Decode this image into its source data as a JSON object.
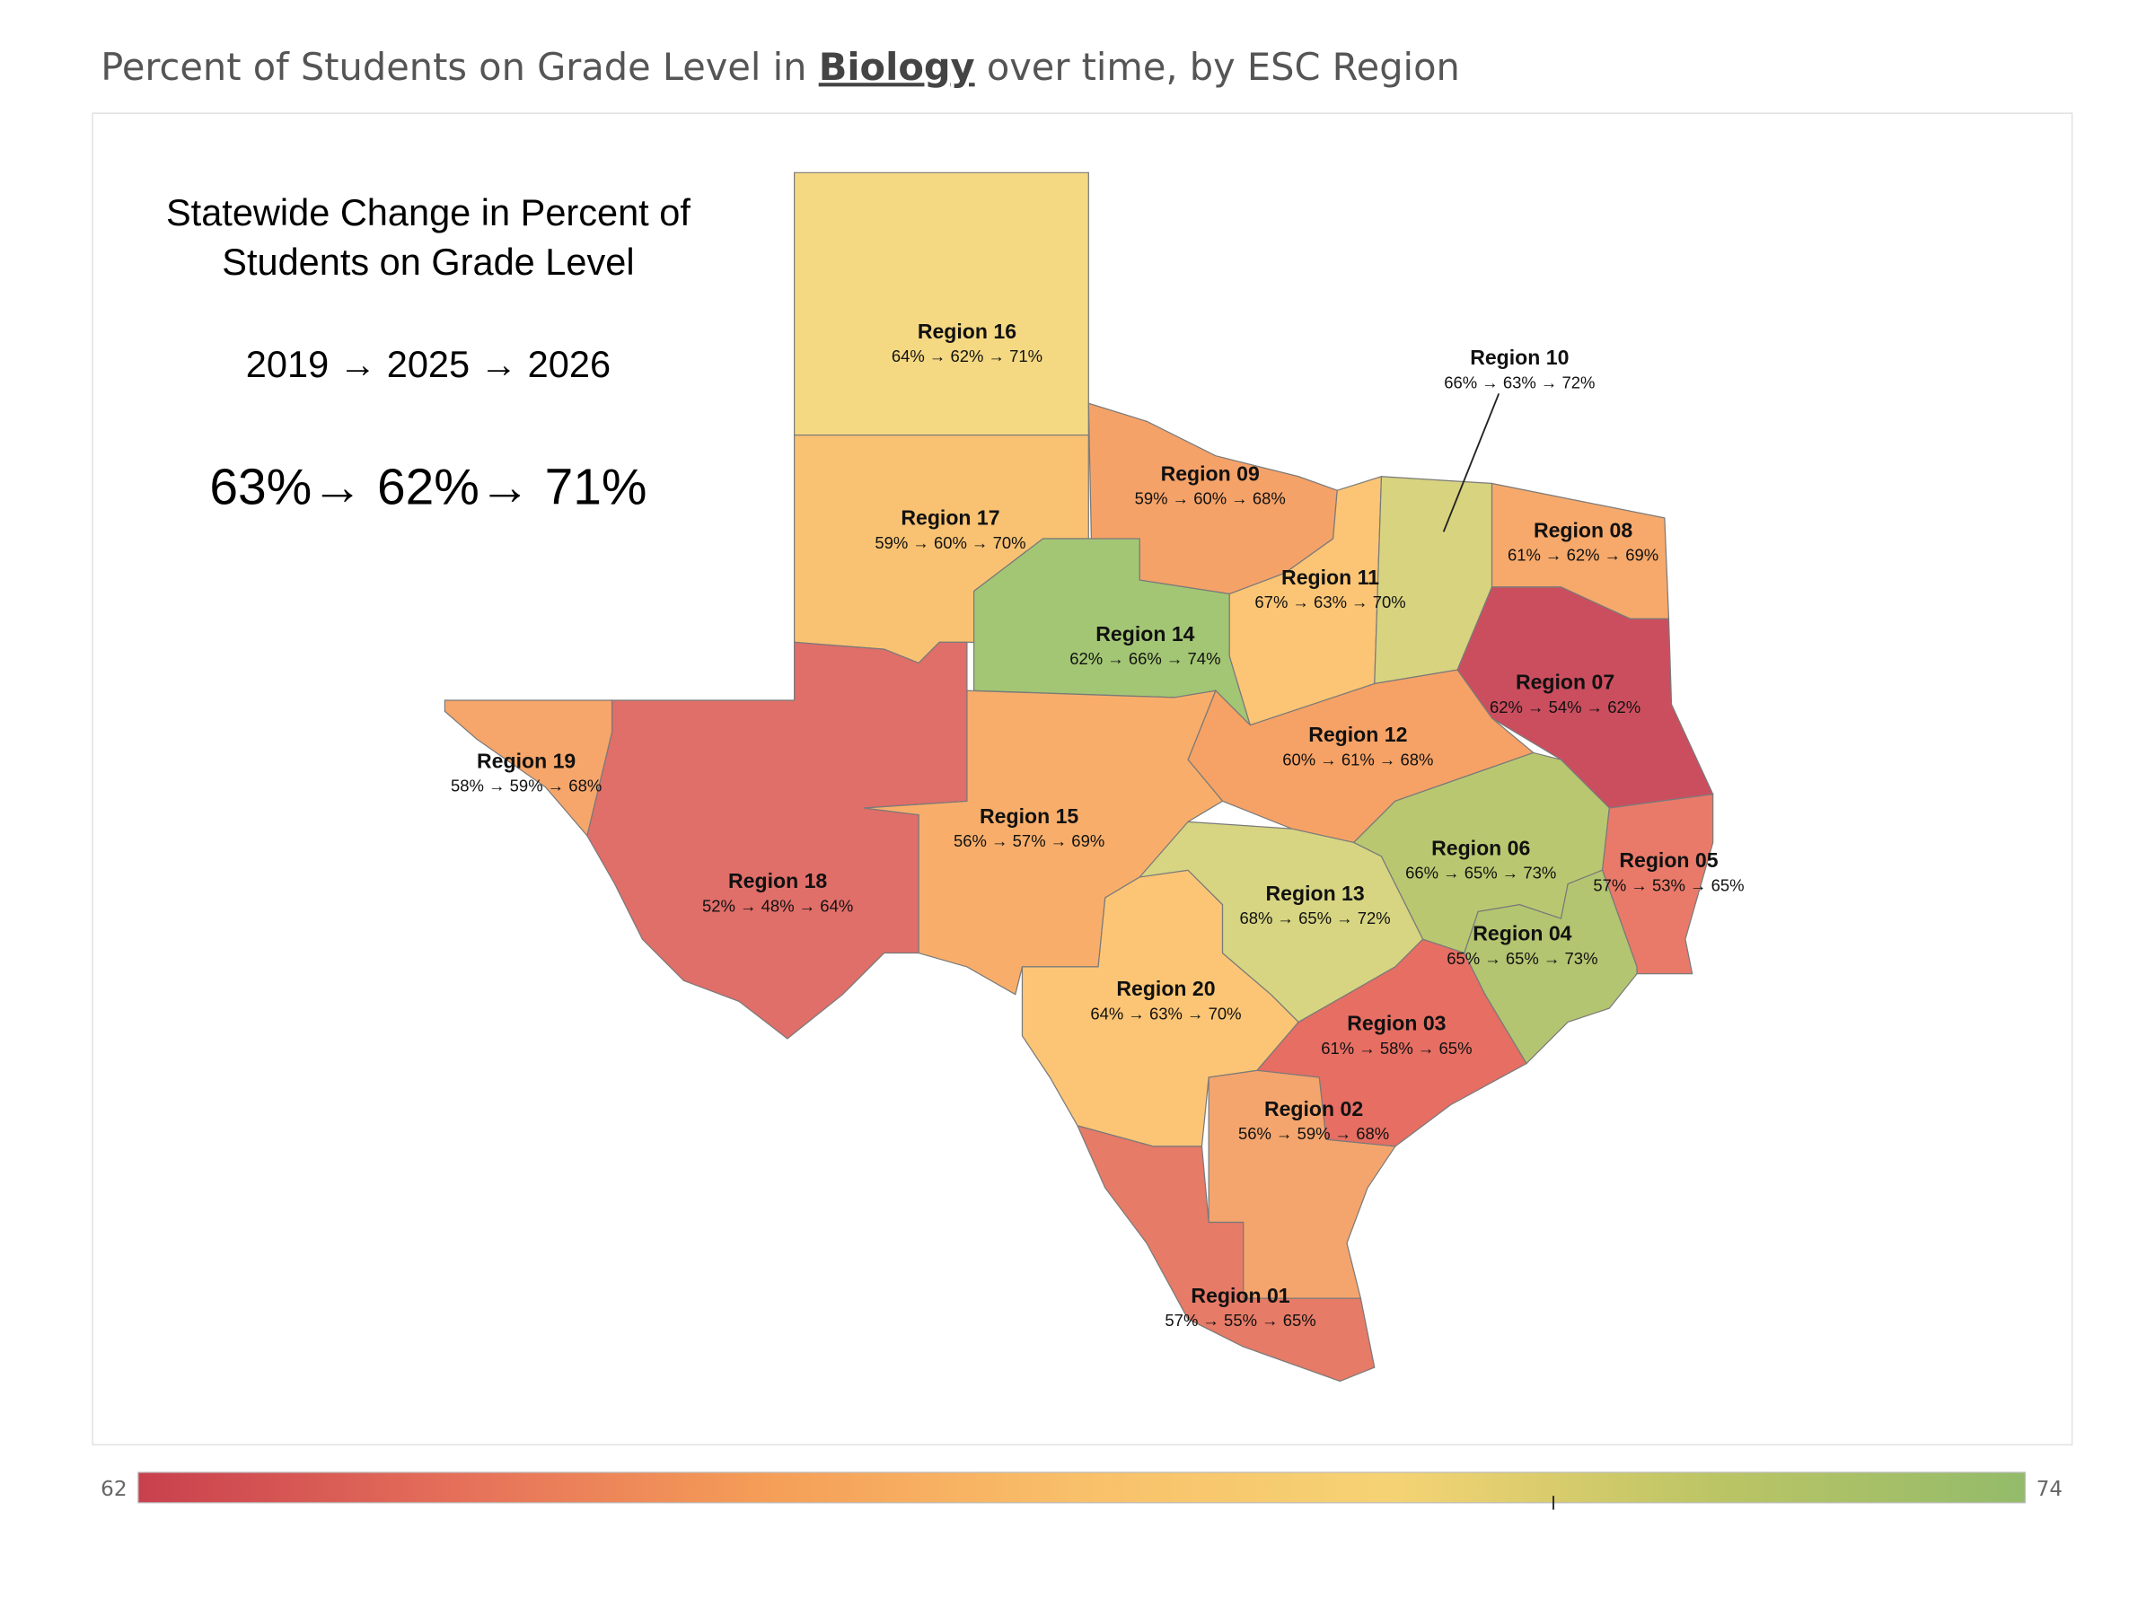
{
  "title": {
    "before": "Percent of Students on Grade Level in",
    "subject": "Biology",
    "after": "over time, by ESC Region"
  },
  "statewide": {
    "heading_lines": [
      "Statewide Change in Percent of",
      "Students on Grade Level"
    ],
    "years": "2019 → 2025 → 2026",
    "values": "63%→  62%→ 71%"
  },
  "regions": [
    {
      "name": "Region 16",
      "label": "64% → 62% → 71%",
      "color": "#f5d982"
    },
    {
      "name": "Region 17",
      "label": "59% → 60% → 70%",
      "color": "#f9c272"
    },
    {
      "name": "Region 09",
      "label": "59% → 60% → 68%",
      "color": "#f5a269"
    },
    {
      "name": "Region 14",
      "label": "62% → 66% → 74%",
      "color": "#a3c674"
    },
    {
      "name": "Region 11",
      "label": "67% → 63% → 70%",
      "color": "#fbc575"
    },
    {
      "name": "Region 10",
      "label": "66% → 63% → 72%",
      "color": "#d7d37f"
    },
    {
      "name": "Region 08",
      "label": "61% → 62% → 69%",
      "color": "#f6a96b"
    },
    {
      "name": "Region 07",
      "label": "62% → 54% → 62%",
      "color": "#cb4e5f"
    },
    {
      "name": "Region 12",
      "label": "60% → 61% → 68%",
      "color": "#f6a266"
    },
    {
      "name": "Region 15",
      "label": "56% → 57% → 69%",
      "color": "#f8ae6a"
    },
    {
      "name": "Region 18",
      "label": "52% → 48% → 64%",
      "color": "#e06e69"
    },
    {
      "name": "Region 19",
      "label": "58% → 59% → 68%",
      "color": "#f6a66b"
    },
    {
      "name": "Region 20",
      "label": "64% → 63% → 70%",
      "color": "#fcc575"
    },
    {
      "name": "Region 13",
      "label": "68% → 65% → 72%",
      "color": "#d7d581"
    },
    {
      "name": "Region 06",
      "label": "66% → 65% → 73%",
      "color": "#b9c870"
    },
    {
      "name": "Region 04",
      "label": "65% → 65% → 73%",
      "color": "#b3c570"
    },
    {
      "name": "Region 05",
      "label": "57% → 53% → 65%",
      "color": "#e97a69"
    },
    {
      "name": "Region 03",
      "label": "61% → 58% → 65%",
      "color": "#e66e63"
    },
    {
      "name": "Region 02",
      "label": "56% → 59% → 68%",
      "color": "#f4a56d"
    },
    {
      "name": "Region 01",
      "label": "57% → 55% → 65%",
      "color": "#e67b67"
    }
  ],
  "legend": {
    "min": 62,
    "max": 74,
    "marker": 71,
    "colors": [
      "#c8404d",
      "#e56f5a",
      "#f59e58",
      "#f9c06a",
      "#f5d374",
      "#bcc565",
      "#93bb6a"
    ]
  }
}
